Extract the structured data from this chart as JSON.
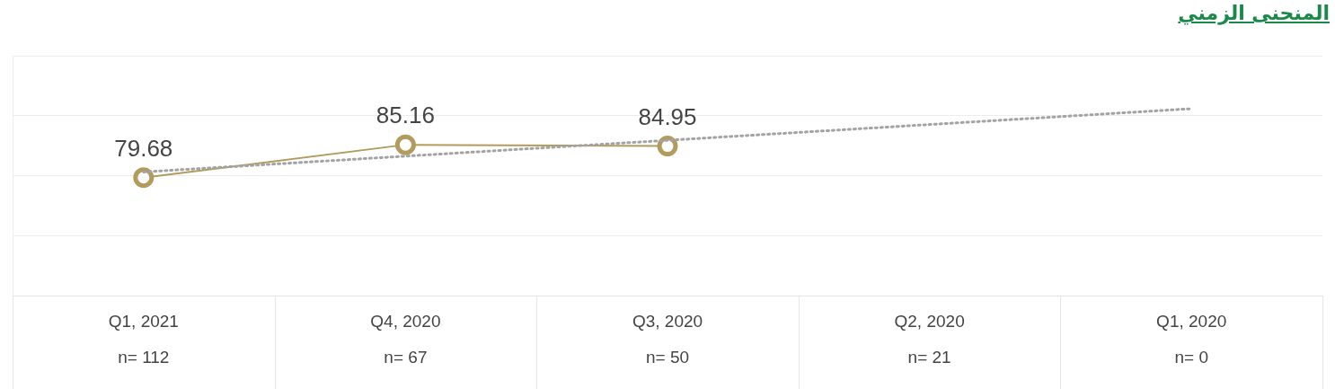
{
  "chart_data": {
    "type": "line",
    "title": "المنحنى الزمني",
    "categories": [
      "Q1, 2021\nn= 112",
      "Q4, 2020\nn= 67",
      "Q3, 2020\nn= 50",
      "Q2, 2020\nn= 21",
      "Q1, 2020\nn= 0"
    ],
    "series": [
      {
        "color": "#b19b5d",
        "values": [
          79.68,
          85.16,
          84.95,
          null,
          null
        ],
        "value_labels": [
          "79.68",
          "85.16",
          "84.95",
          null,
          null
        ],
        "marker": "circle",
        "line_style": "solid"
      },
      {
        "type": "line",
        "color": "#a3a3a3",
        "values": [
          80.63,
          83.26,
          85.9,
          88.53,
          91.17
        ],
        "marker": "none",
        "line_style": "dotted"
      }
    ],
    "ylim": [
      60,
      100
    ],
    "yticks": [
      {
        "value": 60,
        "label": null
      },
      {
        "value": 70,
        "label": null
      },
      {
        "value": 80,
        "label": null
      },
      {
        "value": 90,
        "label": null
      },
      {
        "value": 100,
        "label": null
      }
    ],
    "tick_labels": "x",
    "grid": "y",
    "legend": false
  }
}
